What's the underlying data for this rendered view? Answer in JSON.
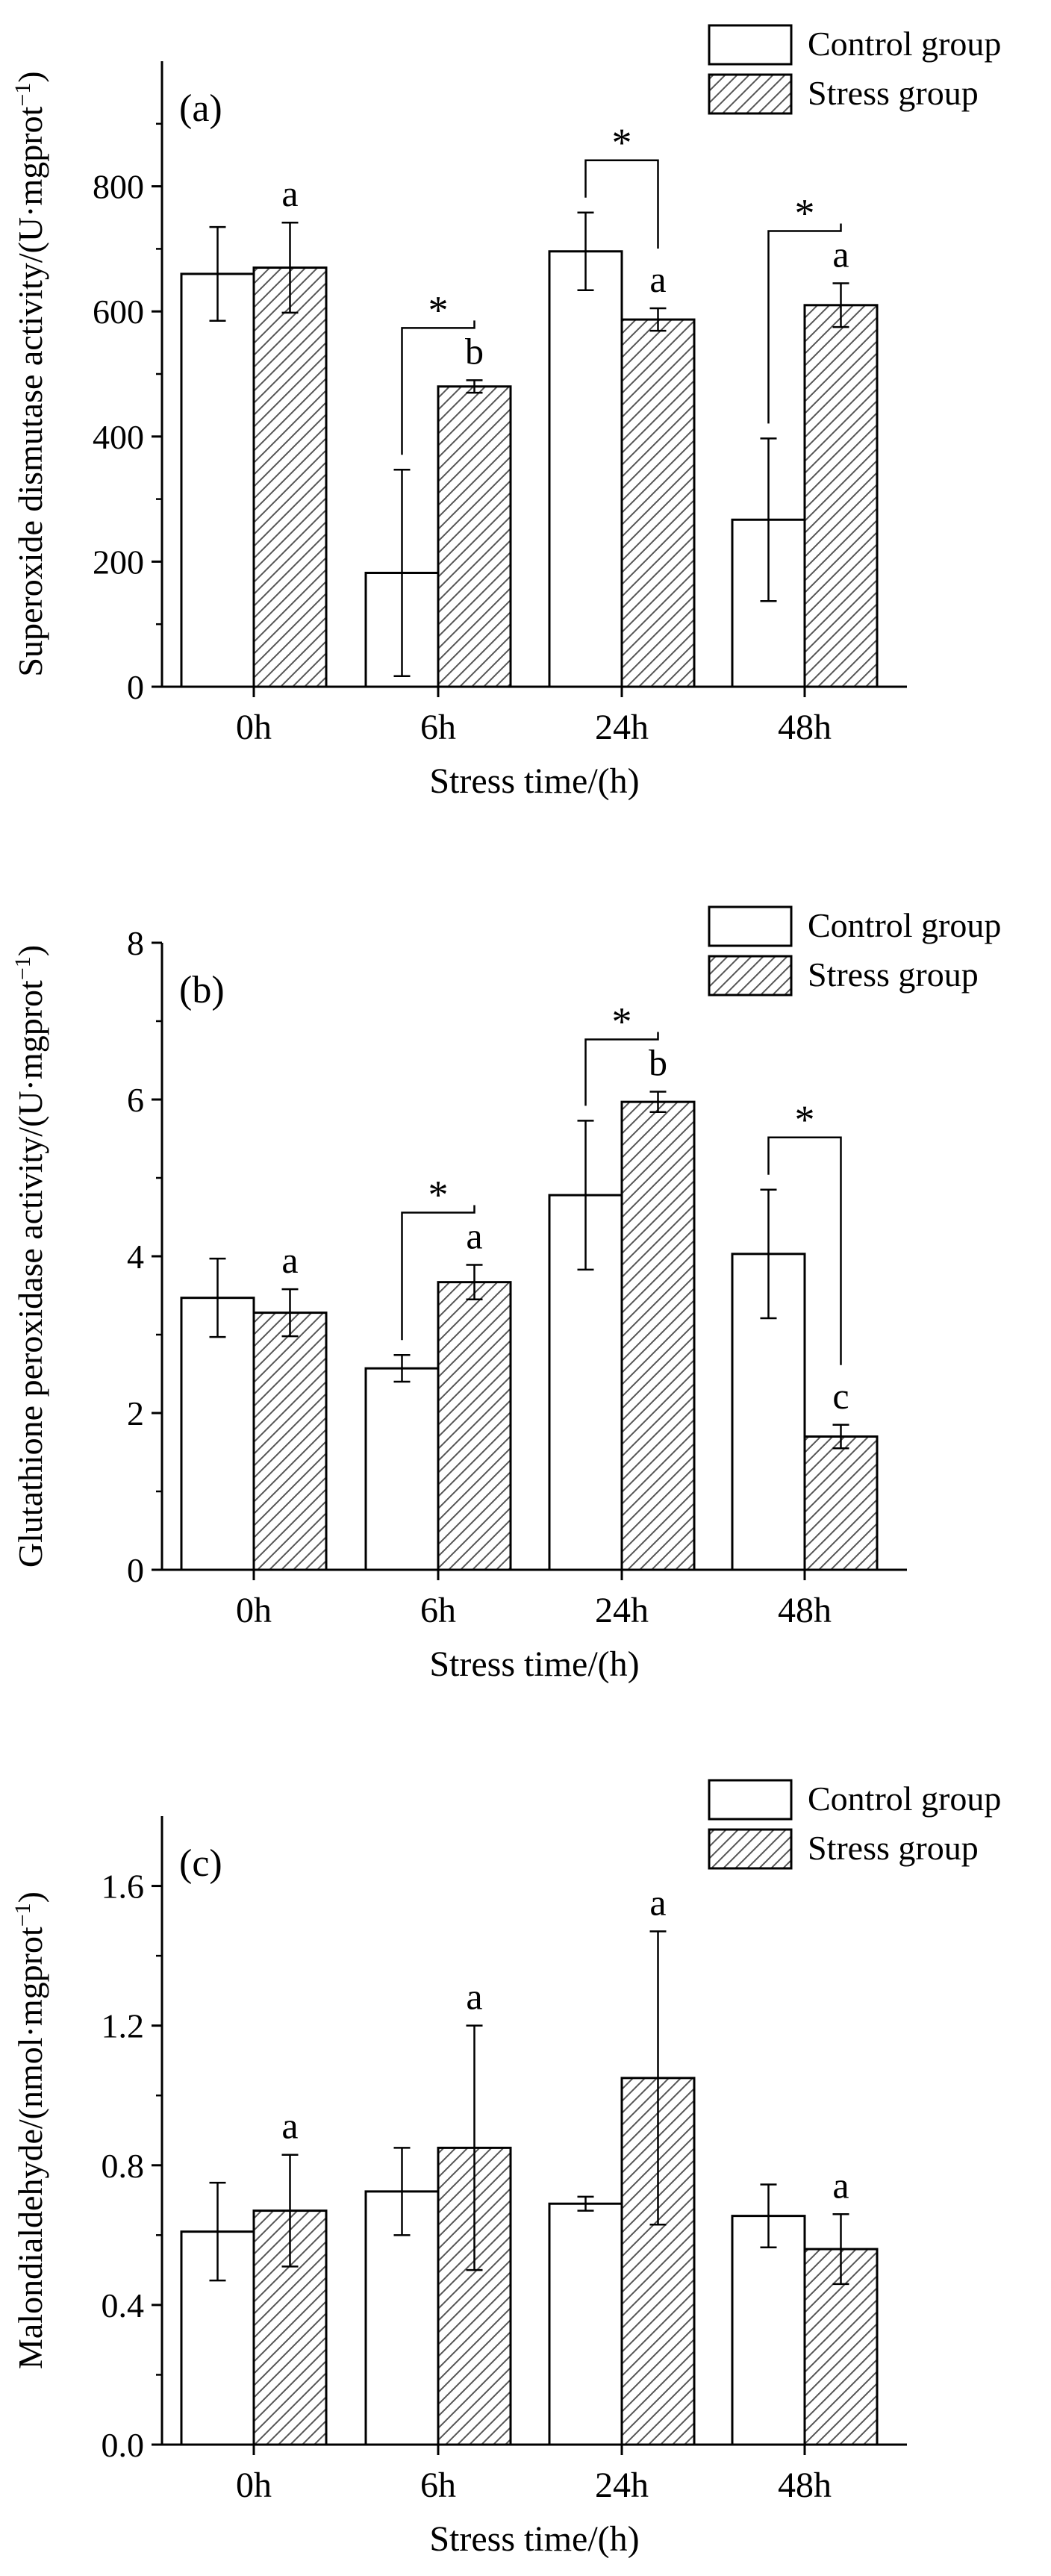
{
  "colors": {
    "ink": "#000000",
    "control_fill": "#ffffff",
    "stress_hatch": "#555555"
  },
  "chart_data": [
    {
      "type": "bar",
      "panel_label": "(a)",
      "title": "",
      "xlabel": "Stress time/(h)",
      "ylabel_main": "Superoxide dismutase activity/(U·mgprot",
      "ylabel_sup": "−1",
      "ylabel_close": ")",
      "ylim": [
        0,
        1000
      ],
      "yticks": [
        0,
        200,
        400,
        600,
        800
      ],
      "ytick_labels": [
        "0",
        "200",
        "400",
        "600",
        "800"
      ],
      "categories": [
        "0h",
        "6h",
        "24h",
        "48h"
      ],
      "legend": [
        "Control group",
        "Stress group"
      ],
      "series": [
        {
          "name": "Control group",
          "values": [
            660,
            182,
            696,
            267
          ],
          "errors": [
            75,
            165,
            62,
            130
          ]
        },
        {
          "name": "Stress group",
          "values": [
            670,
            480,
            587,
            610
          ],
          "errors": [
            72,
            10,
            18,
            35
          ]
        }
      ],
      "letters": [
        "a",
        "b",
        "a",
        "a"
      ],
      "significance": [
        {
          "category": "6h",
          "mark": "*"
        },
        {
          "category": "24h",
          "mark": "*"
        },
        {
          "category": "48h",
          "mark": "*"
        }
      ]
    },
    {
      "type": "bar",
      "panel_label": "(b)",
      "title": "",
      "xlabel": "Stress time/(h)",
      "ylabel_main": "Glutathione peroxidase activity/(U·mgprot",
      "ylabel_sup": "−1",
      "ylabel_close": ")",
      "ylim": [
        0,
        8
      ],
      "yticks": [
        0,
        2,
        4,
        6,
        8
      ],
      "ytick_labels": [
        "0",
        "2",
        "4",
        "6",
        "8"
      ],
      "categories": [
        "0h",
        "6h",
        "24h",
        "48h"
      ],
      "legend": [
        "Control group",
        "Stress group"
      ],
      "series": [
        {
          "name": "Control group",
          "values": [
            3.47,
            2.57,
            4.78,
            4.03
          ],
          "errors": [
            0.5,
            0.17,
            0.95,
            0.82
          ]
        },
        {
          "name": "Stress group",
          "values": [
            3.28,
            3.67,
            5.97,
            1.7
          ],
          "errors": [
            0.3,
            0.22,
            0.13,
            0.15
          ]
        }
      ],
      "letters": [
        "a",
        "a",
        "b",
        "c"
      ],
      "significance": [
        {
          "category": "6h",
          "mark": "*"
        },
        {
          "category": "24h",
          "mark": "*"
        },
        {
          "category": "48h",
          "mark": "*"
        }
      ]
    },
    {
      "type": "bar",
      "panel_label": "(c)",
      "title": "",
      "xlabel": "Stress time/(h)",
      "ylabel_main": "Malondialdehyde/(nmol·mgprot",
      "ylabel_sup": "−1",
      "ylabel_close": ")",
      "ylim": [
        0,
        1.8
      ],
      "yticks": [
        0,
        0.4,
        0.8,
        1.2,
        1.6
      ],
      "ytick_labels": [
        "0.0",
        "0.4",
        "0.8",
        "1.2",
        "1.6"
      ],
      "categories": [
        "0h",
        "6h",
        "24h",
        "48h"
      ],
      "legend": [
        "Control group",
        "Stress group"
      ],
      "series": [
        {
          "name": "Control group",
          "values": [
            0.61,
            0.725,
            0.69,
            0.655
          ],
          "errors": [
            0.14,
            0.125,
            0.02,
            0.09
          ]
        },
        {
          "name": "Stress group",
          "values": [
            0.67,
            0.85,
            1.05,
            0.56
          ],
          "errors": [
            0.16,
            0.35,
            0.42,
            0.1
          ]
        }
      ],
      "letters": [
        "a",
        "a",
        "a",
        "a"
      ],
      "significance": []
    }
  ]
}
